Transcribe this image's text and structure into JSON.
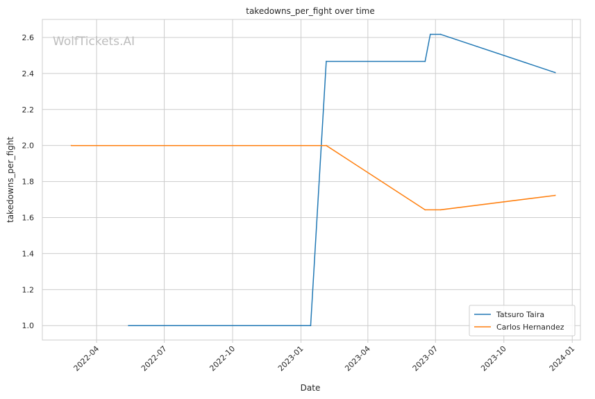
{
  "chart_data": {
    "type": "line",
    "title": "takedowns_per_fight over time",
    "xlabel": "Date",
    "ylabel": "takedowns_per_fight",
    "watermark": "WolfTickets.AI",
    "xlim": [
      "2022-01-18",
      "2024-01-12"
    ],
    "ylim": [
      0.92,
      2.7
    ],
    "x_ticks": [
      {
        "date": "2022-04-01",
        "label": "2022-04"
      },
      {
        "date": "2022-07-01",
        "label": "2022-07"
      },
      {
        "date": "2022-10-01",
        "label": "2022-10"
      },
      {
        "date": "2023-01-01",
        "label": "2023-01"
      },
      {
        "date": "2023-04-01",
        "label": "2023-04"
      },
      {
        "date": "2023-07-01",
        "label": "2023-07"
      },
      {
        "date": "2023-10-01",
        "label": "2023-10"
      },
      {
        "date": "2024-01-01",
        "label": "2024-01"
      }
    ],
    "y_ticks": [
      1.0,
      1.2,
      1.4,
      1.6,
      1.8,
      2.0,
      2.2,
      2.4,
      2.6
    ],
    "grid": true,
    "legend_position": "lower-right",
    "series": [
      {
        "name": "Tatsuro Taira",
        "color": "#1f77b4",
        "points": [
          {
            "x": "2022-05-14",
            "y": 1.0
          },
          {
            "x": "2023-01-14",
            "y": 1.0
          },
          {
            "x": "2023-02-04",
            "y": 2.467
          },
          {
            "x": "2023-06-17",
            "y": 2.467
          },
          {
            "x": "2023-06-24",
            "y": 2.617
          },
          {
            "x": "2023-07-08",
            "y": 2.617
          },
          {
            "x": "2023-12-09",
            "y": 2.405
          }
        ]
      },
      {
        "name": "Carlos Hernandez",
        "color": "#ff7f0e",
        "points": [
          {
            "x": "2022-02-26",
            "y": 2.0
          },
          {
            "x": "2023-02-04",
            "y": 2.0
          },
          {
            "x": "2023-06-17",
            "y": 1.643
          },
          {
            "x": "2023-07-08",
            "y": 1.643
          },
          {
            "x": "2023-12-09",
            "y": 1.723
          }
        ]
      }
    ]
  }
}
